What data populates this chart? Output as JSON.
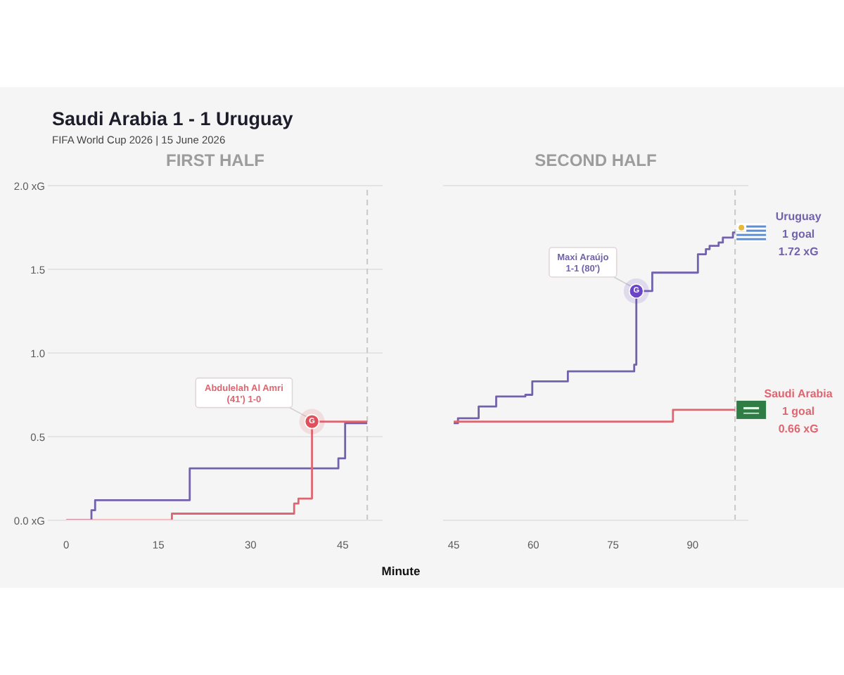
{
  "chart_data": [
    {
      "type": "step",
      "title": "Saudi Arabia 1 - 1 Uruguay",
      "subtitle": "FIFA World Cup 2026 | 15 June 2026",
      "annotations": [
        "FIRST HALF",
        {
          "text": "Abdulelah Al Amri\n(41') 1-0",
          "x": 40,
          "y": 0.59
        }
      ],
      "series": [
        {
          "color": "#7262ab",
          "x": [
            0,
            4.1,
            4.7,
            20.1,
            44.3,
            45.4,
            49
          ],
          "values": [
            0,
            0.06,
            0.12,
            0.31,
            0.37,
            0.58,
            0.58
          ]
        },
        {
          "color": "#df6670",
          "x": [
            0,
            17.2,
            37.1,
            37.8,
            40,
            49
          ],
          "values": [
            0,
            0.04,
            0.1,
            0.13,
            0.59,
            0.59
          ]
        },
        {
          "type": "scatter",
          "color": "#df4f5c",
          "x": [
            40
          ],
          "values": [
            0.59
          ],
          "value_labels": [
            "G"
          ]
        }
      ],
      "xlim": [
        -3,
        51.5
      ],
      "xticks": [
        0,
        15,
        30,
        45
      ],
      "ylim": [
        0,
        2
      ],
      "yticks": [
        {
          "value": 0,
          "label": "0.0 xG"
        },
        0.5,
        {
          "value": 1,
          "label": "1.0"
        },
        1.5,
        {
          "value": 2,
          "label": "2.0 xG"
        }
      ],
      "grid": "y",
      "ref_lines": [
        {
          "axis": "x",
          "value": 49,
          "color": "#c8c8c8",
          "line_style": "dashed"
        }
      ]
    },
    {
      "type": "step",
      "title": "SECOND HALF",
      "xlabel": "Minute",
      "annotations": [
        {
          "text": "Maxi Araújo\n1-1 (80')",
          "x": 79.4,
          "y": 1.37
        },
        "1 goal\n1.72 xG",
        "1 goal\n0.66 xG"
      ],
      "series": [
        {
          "name": "Uruguay",
          "color": "#7262ab",
          "x": [
            45,
            45.8,
            49.7,
            53,
            58.5,
            59.8,
            66.5,
            79,
            79.4,
            82.4,
            91,
            92.5,
            93.2,
            94.9,
            95.7,
            97.6,
            98
          ],
          "values": [
            0.58,
            0.61,
            0.68,
            0.74,
            0.75,
            0.83,
            0.89,
            0.93,
            1.37,
            1.48,
            1.59,
            1.62,
            1.64,
            1.66,
            1.69,
            1.72,
            1.72
          ]
        },
        {
          "name": "Saudi Arabia",
          "color": "#df6670",
          "x": [
            45,
            86.3,
            98
          ],
          "values": [
            0.59,
            0.66,
            0.66
          ]
        },
        {
          "type": "scatter",
          "color": "#6a46c4",
          "x": [
            79.4
          ],
          "values": [
            1.37
          ],
          "value_labels": [
            "G"
          ]
        }
      ],
      "xlim": [
        43,
        100.5
      ],
      "xticks": [
        45,
        60,
        75,
        90
      ],
      "ylim": [
        0,
        2
      ],
      "yticks": [
        0,
        0.5,
        1,
        1.5,
        2
      ],
      "tick_labels": "x",
      "grid": "y",
      "ref_lines": [
        {
          "axis": "x",
          "value": 98,
          "color": "#c8c8c8",
          "line_style": "dashed"
        }
      ]
    }
  ]
}
